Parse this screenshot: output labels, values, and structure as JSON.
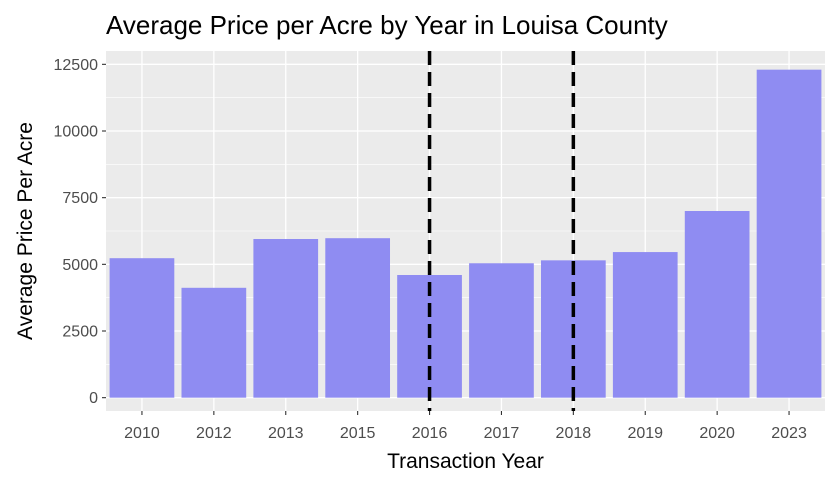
{
  "chart_data": {
    "type": "bar",
    "title": "Average Price per Acre by Year in Louisa County",
    "xlabel": "Transaction Year",
    "ylabel": "Average Price Per Acre",
    "categories": [
      "2010",
      "2012",
      "2013",
      "2015",
      "2016",
      "2017",
      "2018",
      "2019",
      "2020",
      "2023"
    ],
    "values": [
      5230,
      4120,
      5950,
      5980,
      4600,
      5040,
      5150,
      5460,
      7000,
      12300
    ],
    "ylim": [
      -500,
      13000
    ],
    "yticks": [
      0,
      2500,
      5000,
      7500,
      10000,
      12500
    ],
    "ytick_labels": [
      "0",
      "2500",
      "5000",
      "7500",
      "10000",
      "12500"
    ],
    "vlines": [
      "2016",
      "2018"
    ],
    "grid": true,
    "bar_color": "#8f8cf2",
    "panel_color": "#ebebeb",
    "grid_color": "#ffffff",
    "vline_color": "#000000"
  }
}
